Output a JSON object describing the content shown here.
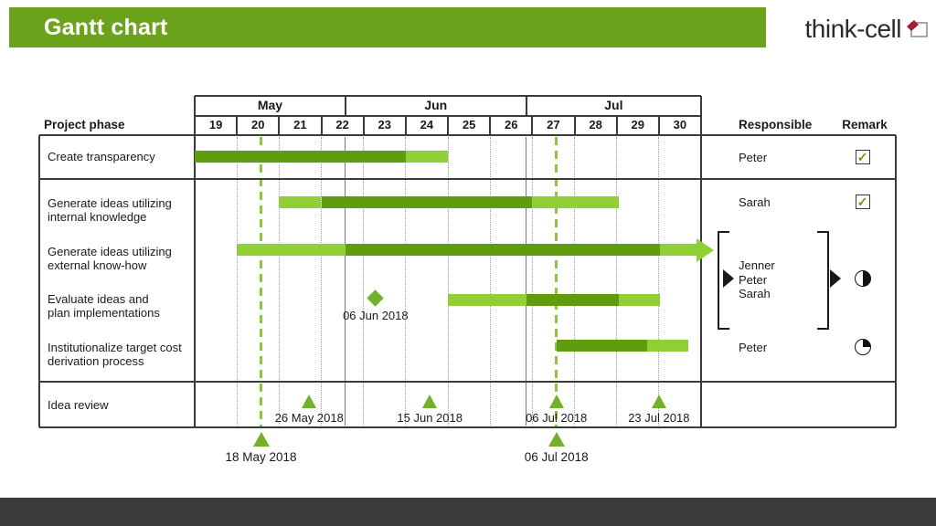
{
  "header": {
    "title": "Gantt chart"
  },
  "logo": {
    "text": "think-cell"
  },
  "colors": {
    "header_bar": "#6ba41c",
    "bar_dark": "#5f9c0e",
    "bar_light": "#90d034",
    "marker": "#72b12a",
    "dashed_line": "#8cc63f",
    "check": "#5f9c0e",
    "line_dark": "#3a3a3a",
    "footer": "#3b3b3b",
    "logo_red": "#a31e31"
  },
  "chart_data": {
    "type": "gantt",
    "title": "Gantt chart",
    "column_headers": {
      "phase": "Project phase",
      "responsible": "Responsible",
      "remark": "Remark"
    },
    "months": [
      {
        "label": "May",
        "from_week": 0,
        "to_week": 3.571
      },
      {
        "label": "Jun",
        "from_week": 3.571,
        "to_week": 7.857
      },
      {
        "label": "Jul",
        "from_week": 7.857,
        "to_week": 12
      }
    ],
    "week_labels": [
      "19",
      "20",
      "21",
      "22",
      "23",
      "24",
      "25",
      "26",
      "27",
      "28",
      "29",
      "30"
    ],
    "tasks": [
      {
        "phase": [
          "Create transparency"
        ],
        "responsible": "Peter",
        "remark": "checkbox-checked",
        "segments": [
          {
            "from": 0,
            "to": 5,
            "shade": "dark"
          },
          {
            "from": 5,
            "to": 6,
            "shade": "light"
          }
        ]
      },
      {
        "phase": [
          "Generate ideas utilizing",
          "internal knowledge"
        ],
        "responsible": "Sarah",
        "remark": "checkbox-checked",
        "segments": [
          {
            "from": 2,
            "to": 3,
            "shade": "light"
          },
          {
            "from": 3,
            "to": 8,
            "shade": "dark"
          },
          {
            "from": 8,
            "to": 10.05,
            "shade": "light"
          }
        ]
      },
      {
        "phase": [
          "Generate ideas utilizing",
          "external know-how"
        ],
        "responsible": null,
        "remark": null,
        "arrow": true,
        "segments": [
          {
            "from": 1,
            "to": 3.571,
            "shade": "light"
          },
          {
            "from": 3.571,
            "to": 11.02,
            "shade": "dark"
          },
          {
            "from": 11.02,
            "to": 11.9,
            "shade": "light"
          }
        ]
      },
      {
        "phase": [
          "Evaluate ideas and",
          "plan implementations"
        ],
        "responsible": null,
        "remark": null,
        "segments": [
          {
            "from": 6,
            "to": 7.857,
            "shade": "light"
          },
          {
            "from": 7.857,
            "to": 10.05,
            "shade": "dark"
          },
          {
            "from": 10.05,
            "to": 11.02,
            "shade": "light"
          }
        ]
      },
      {
        "phase": [
          "Institutionalize target cost",
          "derivation process"
        ],
        "responsible": "Peter",
        "remark": "harvey-25",
        "segments": [
          {
            "from": 8.571,
            "to": 10.72,
            "shade": "dark"
          },
          {
            "from": 10.72,
            "to": 11.7,
            "shade": "light"
          }
        ]
      },
      {
        "phase": [
          "Idea review"
        ],
        "responsible": null,
        "remark": null,
        "markers": [
          {
            "week": 2.714,
            "label": "26 May 2018"
          },
          {
            "week": 5.571,
            "label": "15 Jun 2018"
          },
          {
            "week": 8.571,
            "label": "06 Jul 2018"
          },
          {
            "week": 11,
            "label": "23 Jul 2018"
          }
        ]
      }
    ],
    "milestone": {
      "week": 4.286,
      "label": "06 Jun 2018"
    },
    "baseline_markers": [
      {
        "week": 1.571,
        "label": "18 May 2018"
      },
      {
        "week": 8.571,
        "label": "06 Jul 2018"
      }
    ],
    "group_annotation": {
      "applies_to_tasks": [
        2,
        3
      ],
      "names": [
        "Jenner",
        "Peter",
        "Sarah"
      ],
      "remark": "harvey-50"
    }
  }
}
